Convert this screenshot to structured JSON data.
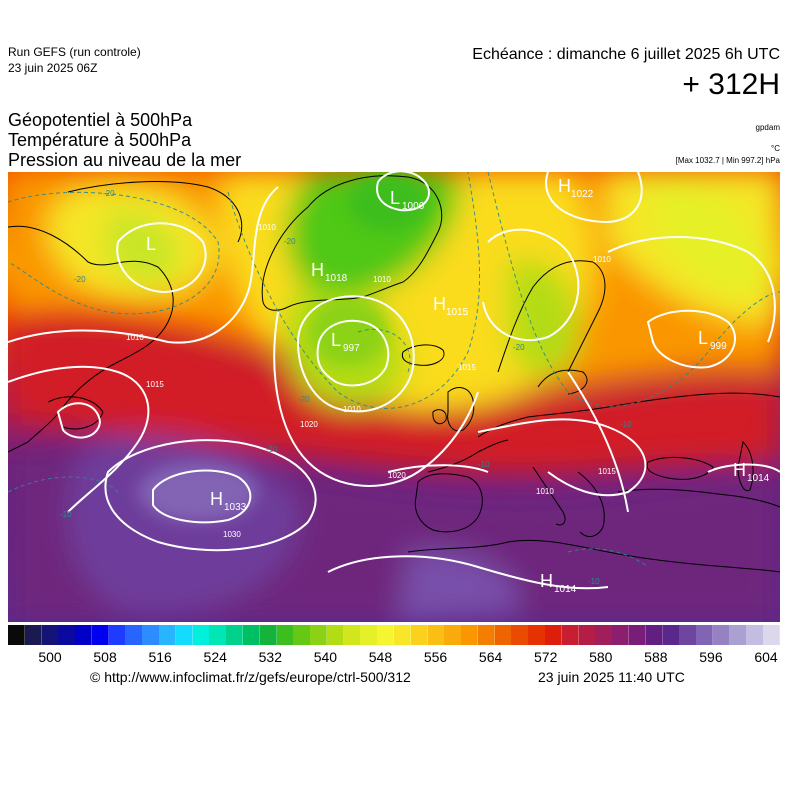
{
  "header": {
    "run_title": "Run GEFS (run controle)",
    "run_date": "23 juin 2025 06Z",
    "echeance": "Echéance : dimanche 6 juillet 2025 6h UTC",
    "lead_time": "+ 312H"
  },
  "titles": {
    "line1": "Géopotentiel à 500hPa",
    "line2": "Température à 500hPa",
    "line3": "Pression au niveau de la mer"
  },
  "units": {
    "geopotential": "gpdam",
    "temperature": "°C",
    "max_min": "[Max 1032.7 | Min 997.2] hPa"
  },
  "pressure_centers": [
    {
      "type": "L",
      "value": "1006"
    },
    {
      "type": "H",
      "value": "1022"
    },
    {
      "type": "L",
      "value": ""
    },
    {
      "type": "H",
      "value": "1018"
    },
    {
      "type": "H",
      "value": "1015"
    },
    {
      "type": "L",
      "value": "997"
    },
    {
      "type": "L",
      "value": "999"
    },
    {
      "type": "H",
      "value": "1033"
    },
    {
      "type": "H",
      "value": "1014"
    },
    {
      "type": "H",
      "value": "1014"
    }
  ],
  "isobar_labels": [
    "1010",
    "1010",
    "1010",
    "1015",
    "1020",
    "1020",
    "1030",
    "1010",
    "1010",
    "1010",
    "1015",
    "1015"
  ],
  "isotherm_labels": [
    "-20",
    "-20",
    "-20",
    "-20",
    "-20",
    "-10",
    "-10",
    "-10",
    "-10",
    "-10"
  ],
  "colorbar": {
    "colors": [
      "#0a0a0a",
      "#1a1a50",
      "#141478",
      "#0a0aa0",
      "#0000c8",
      "#0000f0",
      "#1e3cff",
      "#2864ff",
      "#2d8cff",
      "#28b4ff",
      "#14dcff",
      "#00f0dc",
      "#00e6b4",
      "#00d28c",
      "#00be64",
      "#14b43c",
      "#3cbe1e",
      "#64c814",
      "#8cd214",
      "#b4dc14",
      "#d2e61e",
      "#e6f028",
      "#f5f532",
      "#fae628",
      "#fad21e",
      "#fabe14",
      "#faaa0a",
      "#fa9600",
      "#f57d00",
      "#f06400",
      "#eb4b00",
      "#e63200",
      "#dc1e0a",
      "#c81e32",
      "#b41e46",
      "#a01e5a",
      "#8c1e6e",
      "#781e78",
      "#641e82",
      "#5a288c",
      "#6e46a0",
      "#8264b4",
      "#9682c3",
      "#aaa0d2",
      "#c3bee1",
      "#dcd7eb"
    ],
    "ticks": [
      "500",
      "508",
      "516",
      "524",
      "532",
      "540",
      "548",
      "556",
      "564",
      "572",
      "580",
      "588",
      "596",
      "604"
    ]
  },
  "footer": {
    "credit": "© http://www.infoclimat.fr/z/gefs/europe/ctrl-500/312",
    "stamp": "23 juin 2025 11:40 UTC"
  }
}
